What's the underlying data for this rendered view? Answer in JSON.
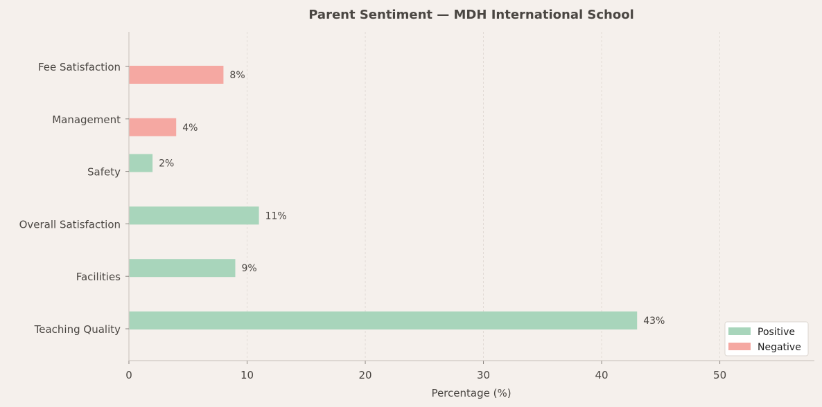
{
  "chart_data": {
    "type": "bar",
    "orientation": "horizontal",
    "title": "Parent Sentiment — MDH International School",
    "xlabel": "Percentage (%)",
    "ylabel": "",
    "xlim": [
      0,
      58
    ],
    "xticks": [
      0,
      10,
      20,
      30,
      40,
      50
    ],
    "grid": "vertical-dashed",
    "legend_placement": "bottom-right",
    "categories": [
      "Fee Satisfaction",
      "Management",
      "Safety",
      "Overall Satisfaction",
      "Facilities",
      "Teaching Quality"
    ],
    "series": [
      {
        "name": "Positive",
        "color": "#a8d5bb",
        "values": [
          null,
          null,
          2,
          11,
          9,
          43
        ]
      },
      {
        "name": "Negative",
        "color": "#f5a8a2",
        "values": [
          8,
          4,
          null,
          null,
          null,
          null
        ]
      }
    ],
    "value_suffix": "%"
  }
}
